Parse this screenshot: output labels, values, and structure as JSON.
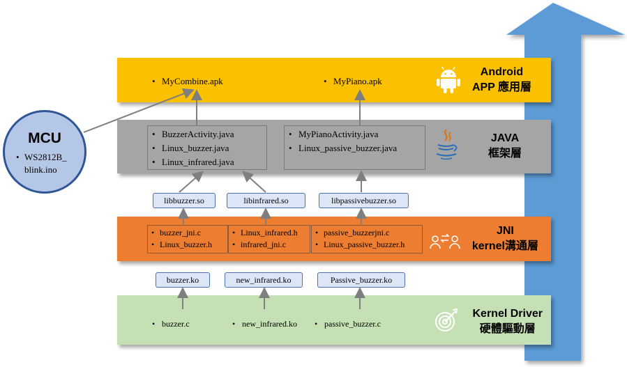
{
  "mcu": {
    "title": "MCU",
    "items": [
      "WS2812B_",
      "blink.ino"
    ]
  },
  "layers": {
    "android": {
      "title_line1": "Android",
      "title_line2": "APP 應用層",
      "items": [
        "MyCombine.apk",
        "MyPiano.apk"
      ],
      "icon": "android-robot-icon",
      "color": "#fbc000"
    },
    "java": {
      "title_line1": "JAVA",
      "title_line2": "框架層",
      "box1": [
        "BuzzerActivity.java",
        "Linux_buzzer.java",
        "Linux_infrared.java"
      ],
      "box2": [
        "MyPianoActivity.java",
        "Linux_passive_buzzer.java"
      ],
      "icon": "java-coffee-cup-icon",
      "color": "#a5a5a5"
    },
    "libs": [
      "libbuzzer.so",
      "libinfrared.so",
      "libpassivebuzzer.so"
    ],
    "jni": {
      "title_line1": "JNI",
      "title_line2": "kernel溝通層",
      "box1": [
        "buzzer_jni.c",
        "Linux_buzzer.h"
      ],
      "box2": [
        "Linux_infrared.h",
        "infrared_jni.c"
      ],
      "box3": [
        "passive_buzzerjni.c",
        "Linux_passive_buzzer.h"
      ],
      "icon": "people-exchange-icon",
      "color": "#ed7d31"
    },
    "kos": [
      "buzzer.ko",
      "new_infrared.ko",
      "Passive_buzzer.ko"
    ],
    "kernel": {
      "title_line1": "Kernel Driver",
      "title_line2": "硬體驅動層",
      "items": [
        "buzzer.c",
        "new_infrared.ko",
        "passive_buzzer.c"
      ],
      "icon": "target-arrow-icon",
      "color": "#c5e0b4"
    }
  },
  "colors": {
    "big_arrow": "#5b9bd5",
    "lib_box": "#dce6f7",
    "connector": "#7f7f7f"
  }
}
